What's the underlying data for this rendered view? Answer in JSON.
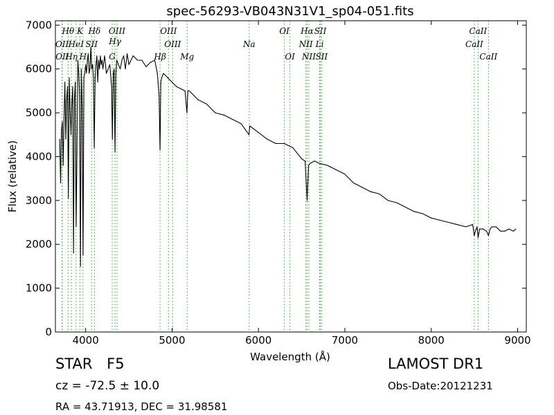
{
  "chart_data": {
    "type": "line",
    "title": "spec-56293-VB043N31V1_sp04-051.fits",
    "xlabel": "Wavelength (Å)",
    "ylabel": "Flux (relative)",
    "xlim": [
      3650,
      9100
    ],
    "ylim": [
      0,
      7100
    ],
    "xticks": [
      4000,
      5000,
      6000,
      7000,
      8000,
      9000
    ],
    "yticks": [
      0,
      1000,
      2000,
      3000,
      4000,
      5000,
      6000,
      7000
    ],
    "grid": false,
    "series": [
      {
        "color": "#000000",
        "x": [
          3700,
          3710,
          3720,
          3730,
          3740,
          3750,
          3760,
          3770,
          3780,
          3790,
          3800,
          3810,
          3820,
          3830,
          3840,
          3850,
          3860,
          3870,
          3880,
          3890,
          3900,
          3910,
          3920,
          3930,
          3940,
          3950,
          3960,
          3970,
          3980,
          3990,
          4000,
          4010,
          4020,
          4030,
          4040,
          4050,
          4060,
          4070,
          4080,
          4090,
          4100,
          4110,
          4120,
          4130,
          4140,
          4150,
          4160,
          4170,
          4180,
          4190,
          4200,
          4220,
          4240,
          4260,
          4280,
          4300,
          4310,
          4320,
          4330,
          4340,
          4350,
          4360,
          4380,
          4400,
          4420,
          4440,
          4460,
          4480,
          4500,
          4550,
          4600,
          4650,
          4700,
          4750,
          4800,
          4830,
          4850,
          4861,
          4870,
          4880,
          4900,
          4950,
          5000,
          5050,
          5100,
          5150,
          5172,
          5183,
          5200,
          5300,
          5400,
          5500,
          5600,
          5700,
          5800,
          5890,
          5900,
          6000,
          6100,
          6200,
          6300,
          6400,
          6500,
          6540,
          6563,
          6580,
          6600,
          6650,
          6700,
          6800,
          6900,
          7000,
          7100,
          7200,
          7300,
          7400,
          7500,
          7600,
          7700,
          7800,
          7900,
          8000,
          8100,
          8200,
          8300,
          8400,
          8480,
          8498,
          8510,
          8530,
          8542,
          8560,
          8600,
          8640,
          8662,
          8680,
          8700,
          8750,
          8800,
          8850,
          8900,
          8950,
          8980
        ],
        "values": [
          4400,
          3400,
          4600,
          4800,
          3800,
          4900,
          5700,
          4400,
          5300,
          5600,
          3050,
          5800,
          5100,
          4500,
          5200,
          5600,
          1800,
          5300,
          5700,
          2400,
          4200,
          6200,
          5900,
          5400,
          1500,
          6000,
          5100,
          1750,
          5800,
          5900,
          6100,
          5900,
          6200,
          6350,
          5900,
          6000,
          6500,
          6000,
          6100,
          5800,
          4200,
          5800,
          6100,
          6300,
          5700,
          6200,
          6000,
          6300,
          6100,
          6200,
          6000,
          6300,
          5900,
          6000,
          6100,
          5600,
          4400,
          5900,
          6000,
          4100,
          5900,
          6200,
          6100,
          6000,
          6200,
          6300,
          6000,
          6350,
          6100,
          6300,
          6200,
          6200,
          6050,
          6150,
          6200,
          5900,
          5400,
          4150,
          5700,
          5800,
          5900,
          5800,
          5700,
          5600,
          5550,
          5500,
          5000,
          5500,
          5500,
          5300,
          5200,
          5000,
          4950,
          4850,
          4750,
          4500,
          4700,
          4550,
          4400,
          4300,
          4300,
          4200,
          3950,
          3900,
          3000,
          3800,
          3850,
          3900,
          3850,
          3800,
          3700,
          3600,
          3400,
          3300,
          3200,
          3150,
          3000,
          2950,
          2850,
          2750,
          2700,
          2600,
          2550,
          2500,
          2450,
          2400,
          2450,
          2200,
          2300,
          2400,
          2150,
          2350,
          2350,
          2300,
          2200,
          2350,
          2400,
          2400,
          2300,
          2300,
          2350,
          2300,
          2350
        ]
      }
    ],
    "lines": [
      {
        "label": "OII",
        "x": 3727,
        "color": "#2ca02c",
        "row": "r2"
      },
      {
        "label": "OII",
        "x": 3729,
        "color": "#2ca02c",
        "row": "r3"
      },
      {
        "label": "Hθ",
        "x": 3797,
        "color": "#2ca02c",
        "row": "r1"
      },
      {
        "label": "Hη",
        "x": 3835,
        "color": "#2ca02c",
        "row": "r3"
      },
      {
        "label": "HeI",
        "x": 3889,
        "color": "#2ca02c",
        "row": "r2"
      },
      {
        "label": "K",
        "x": 3934,
        "color": "#2ca02c",
        "row": "r1"
      },
      {
        "label": "SII",
        "x": 4069,
        "color": "#2ca02c",
        "row": "r2"
      },
      {
        "label": "H",
        "x": 3969,
        "color": "#2ca02c",
        "row": "r3"
      },
      {
        "label": "Hδ",
        "x": 4102,
        "color": "#2ca02c",
        "row": "r1"
      },
      {
        "label": "OIII",
        "x": 4363,
        "color": "#2ca02c",
        "row": "r1"
      },
      {
        "label": "Hγ",
        "x": 4340,
        "color": "#2ca02c",
        "row": "r2b"
      },
      {
        "label": "G",
        "x": 4308,
        "color": "#2ca02c",
        "row": "r3"
      },
      {
        "label": "OIII",
        "x": 4959,
        "color": "#2ca02c",
        "row": "r1"
      },
      {
        "label": "OIII",
        "x": 5007,
        "color": "#2ca02c",
        "row": "r2"
      },
      {
        "label": "Hβ",
        "x": 4861,
        "color": "#2ca02c",
        "row": "r3"
      },
      {
        "label": "Mg",
        "x": 5175,
        "color": "#2ca02c",
        "row": "r3"
      },
      {
        "label": "Na",
        "x": 5893,
        "color": "#2ca02c",
        "row": "r2"
      },
      {
        "label": "OI",
        "x": 6300,
        "color": "#2ca02c",
        "row": "r1"
      },
      {
        "label": "OI",
        "x": 6364,
        "color": "#2ca02c",
        "row": "r3"
      },
      {
        "label": "Hα",
        "x": 6563,
        "color": "#2ca02c",
        "row": "r1"
      },
      {
        "label": "SII",
        "x": 6716,
        "color": "#2ca02c",
        "row": "r1"
      },
      {
        "label": "NII",
        "x": 6548,
        "color": "#2ca02c",
        "row": "r2"
      },
      {
        "label": "Li",
        "x": 6708,
        "color": "#2ca02c",
        "row": "r2"
      },
      {
        "label": "NII",
        "x": 6583,
        "color": "#2ca02c",
        "row": "r3"
      },
      {
        "label": "SII",
        "x": 6731,
        "color": "#2ca02c",
        "row": "r3"
      },
      {
        "label": "CaII",
        "x": 8542,
        "color": "#2ca02c",
        "row": "r1"
      },
      {
        "label": "CaII",
        "x": 8498,
        "color": "#2ca02c",
        "row": "r2"
      },
      {
        "label": "CaII",
        "x": 8662,
        "color": "#2ca02c",
        "row": "r3"
      }
    ]
  },
  "info": {
    "object_class": "STAR",
    "subclass": "F5",
    "survey": "LAMOST DR1",
    "cz": "cz = -72.5 ± 10.0",
    "obs_date": "Obs-Date:20121231",
    "radec": "RA = 43.71913, DEC = 31.98581"
  }
}
